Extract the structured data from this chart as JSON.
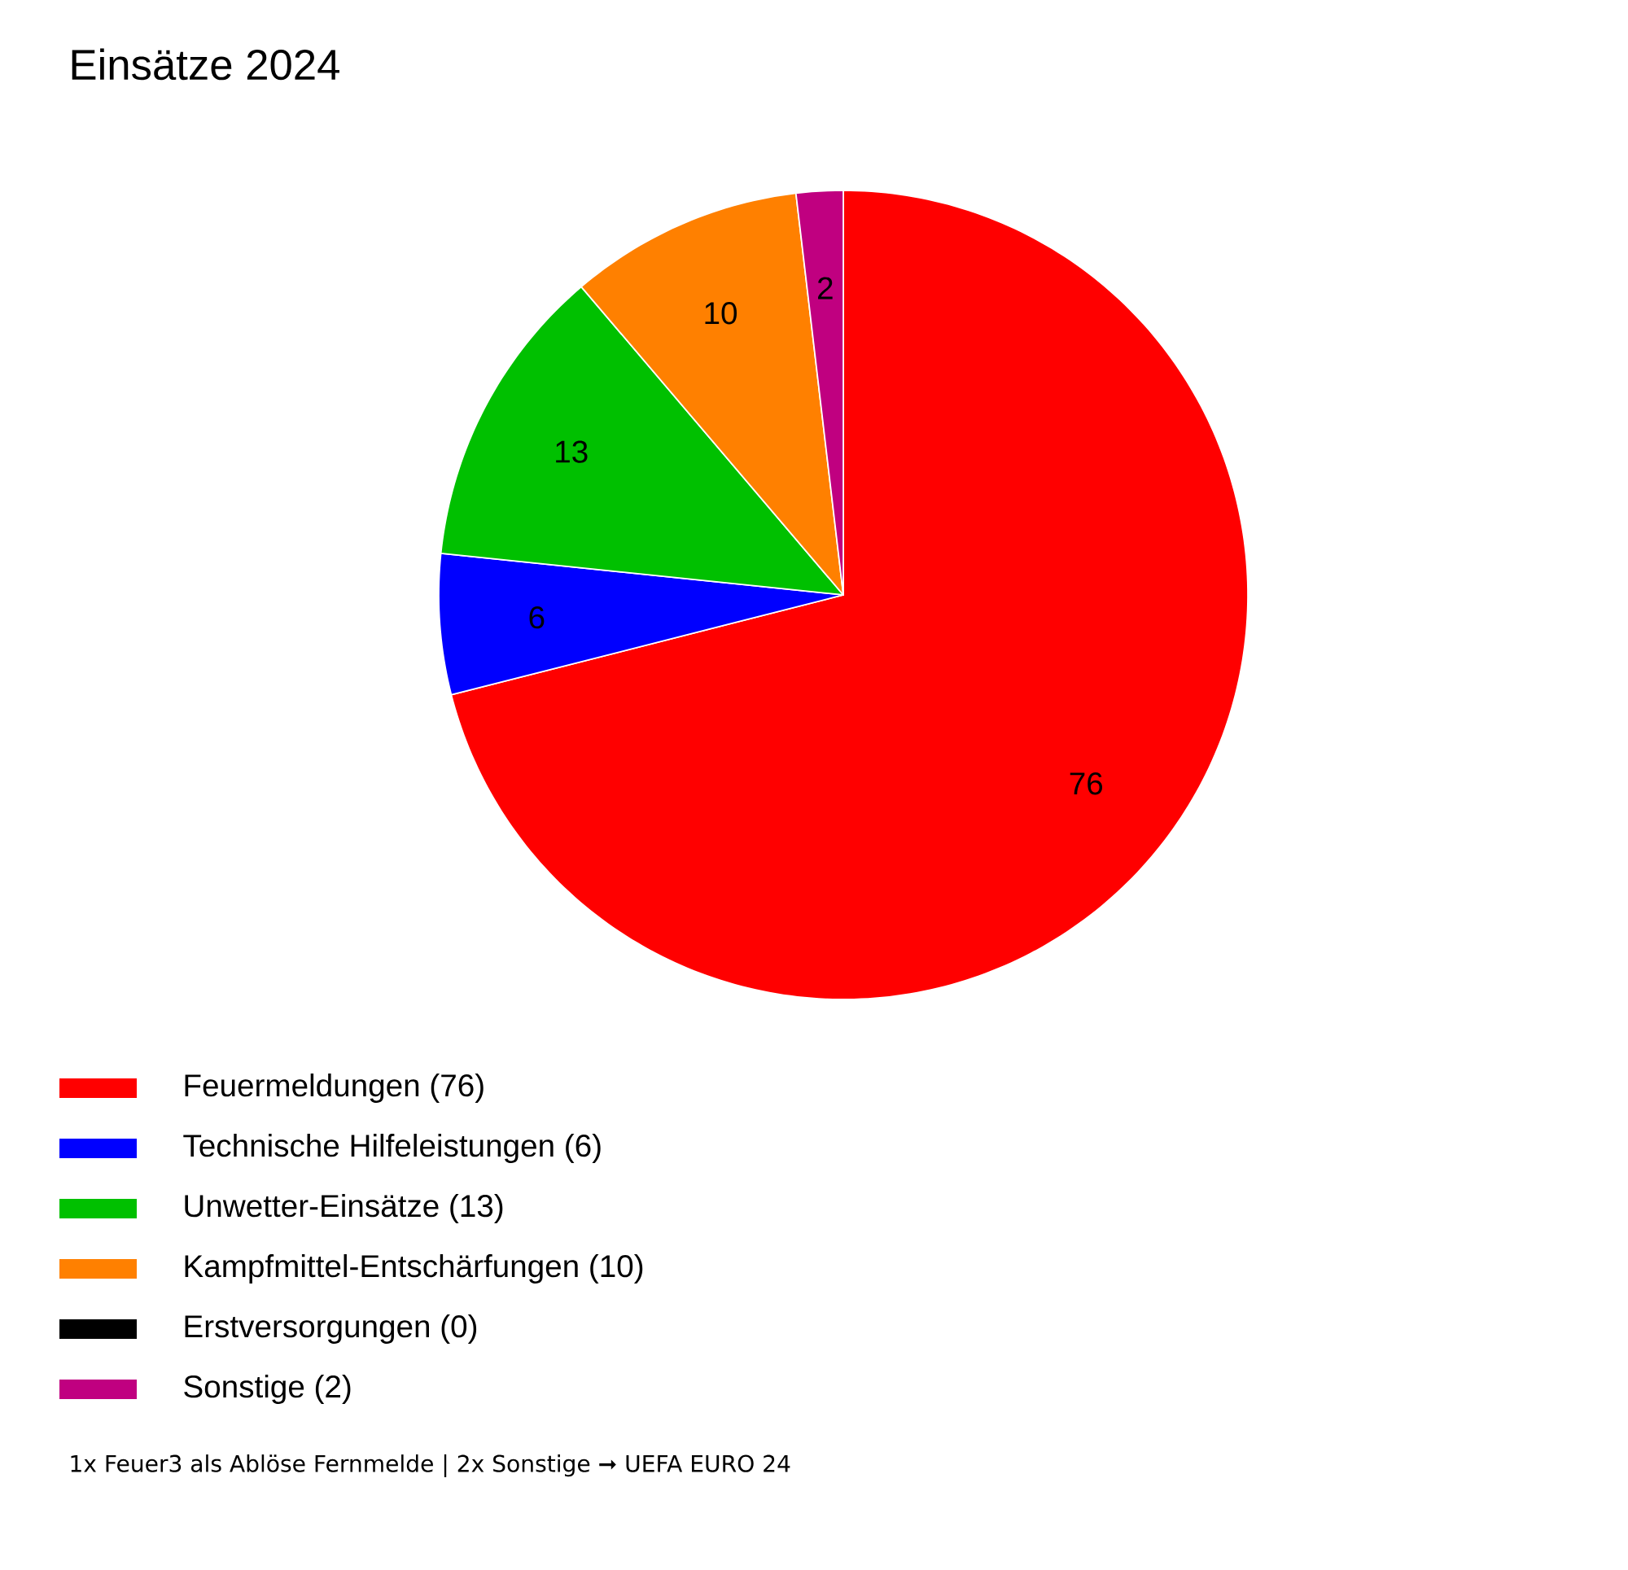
{
  "chart_data": {
    "type": "pie",
    "title": "Einsätze 2024",
    "categories": [
      "Feuermeldungen (76)",
      "Technische Hilfeleistungen (6)",
      "Unwetter-Einsätze (13)",
      "Kampfmittel-Entschärfungen (10)",
      "Erstversorgungen (0)",
      "Sonstige (2)"
    ],
    "values": [
      76,
      6,
      13,
      10,
      0,
      2
    ],
    "colors": [
      "#ff0000",
      "#0000ff",
      "#00c000",
      "#ff8000",
      "#000000",
      "#c00080"
    ],
    "data_labels": true,
    "legend": "bottom",
    "annotations": [
      "1x Feuer3 als Ablöse Fernmelde | 2x Sonstige ➞ UEFA EURO 24"
    ]
  }
}
